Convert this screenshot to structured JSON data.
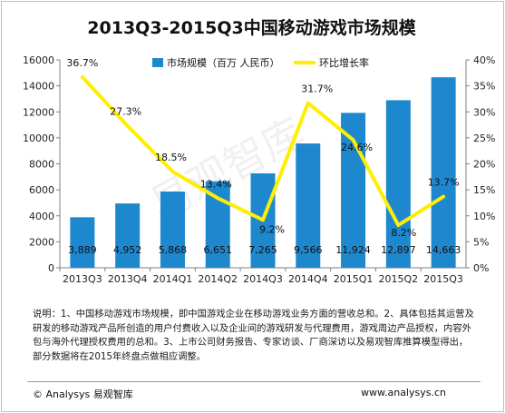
{
  "chart_data": {
    "type": "bar",
    "title": "2013Q3-2015Q3中国移动游戏市场规模",
    "categories": [
      "2013Q3",
      "2013Q4",
      "2014Q1",
      "2014Q2",
      "2014Q3",
      "2014Q4",
      "2015Q1",
      "2015Q2",
      "2015Q3"
    ],
    "series": [
      {
        "name": "市场规模（百万 人民币）",
        "type": "bar",
        "axis": "left",
        "color": "#1e88cf",
        "values": [
          3889,
          4952,
          5868,
          6651,
          7265,
          9566,
          11924,
          12897,
          14663
        ],
        "labels": [
          "3,889",
          "4,952",
          "5,868",
          "6,651",
          "7,265",
          "9,566",
          "11,924",
          "12,897",
          "14,663"
        ]
      },
      {
        "name": "环比增长率",
        "type": "line",
        "axis": "right",
        "color": "#ffee00",
        "values": [
          36.7,
          27.3,
          18.5,
          13.4,
          9.2,
          31.7,
          24.6,
          8.2,
          13.7
        ],
        "labels": [
          "36.7%",
          "27.3%",
          "18.5%",
          "13.4%",
          "9.2%",
          "31.7%",
          "24.6%",
          "8.2%",
          "13.7%"
        ]
      }
    ],
    "ylim": [
      0,
      16000
    ],
    "y_ticks": [
      "0",
      "2000",
      "4000",
      "6000",
      "8000",
      "10000",
      "12000",
      "14000",
      "16000"
    ],
    "y2lim": [
      0,
      40
    ],
    "y2_ticks": [
      "0%",
      "5%",
      "10%",
      "15%",
      "20%",
      "25%",
      "30%",
      "35%",
      "40%"
    ],
    "legend_position": "top",
    "grid": false,
    "watermark": "易观智库"
  },
  "note": "说明：1、中国移动游戏市场规模，即中国游戏企业在移动游戏业务方面的营收总和。2、具体包括其运营及研发的移动游戏产品所创造的用户付费收入以及企业间的游戏研发与代理费用，游戏周边产品授权，内容外包与海外代理授权费用的总和。3、上市公司财务报告、专家访谈、厂商深访以及易观智库推算模型得出，部分数据将在2015年终盘点做相应调整。",
  "footer": {
    "left": "© Analysys 易观智库",
    "right": "www.analysys.cn"
  }
}
